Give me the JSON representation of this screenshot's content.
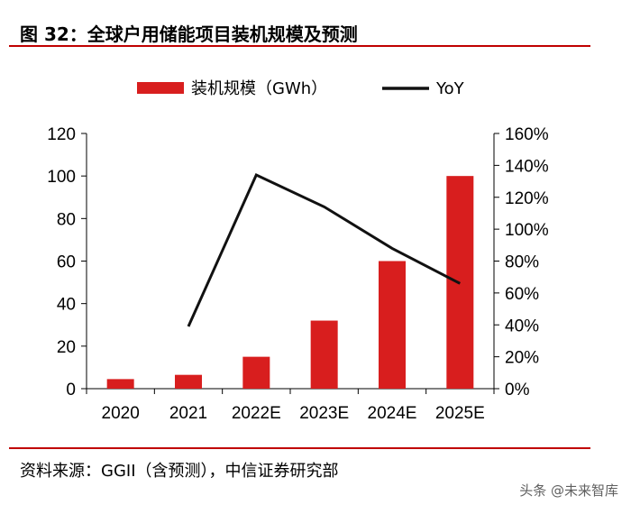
{
  "header": {
    "title": "图 32：全球户用储能项目装机规模及预测"
  },
  "footer": {
    "source": "资料来源：GGII（含预测），中信证券研究部",
    "watermark": "头条 @未来智库"
  },
  "colors": {
    "bar": "#d81e1e",
    "line": "#111111",
    "rule": "#c00000"
  },
  "chart_data": {
    "type": "bar",
    "categories": [
      "2020",
      "2021",
      "2022E",
      "2023E",
      "2024E",
      "2025E"
    ],
    "series": [
      {
        "name": "装机规模（GWh）",
        "type": "bar",
        "axis": "left",
        "values": [
          4.5,
          6.5,
          15,
          32,
          60,
          100
        ]
      },
      {
        "name": "YoY",
        "type": "line",
        "axis": "right",
        "values": [
          null,
          0.39,
          1.34,
          1.14,
          0.88,
          0.66
        ]
      }
    ],
    "y_left": {
      "min": 0,
      "max": 120,
      "ticks": [
        "0",
        "20",
        "40",
        "60",
        "80",
        "100",
        "120"
      ]
    },
    "y_right": {
      "min": 0,
      "max": 1.6,
      "ticks": [
        "0%",
        "20%",
        "40%",
        "60%",
        "80%",
        "100%",
        "120%",
        "140%",
        "160%"
      ]
    },
    "grid": false,
    "legend_position": "top"
  }
}
